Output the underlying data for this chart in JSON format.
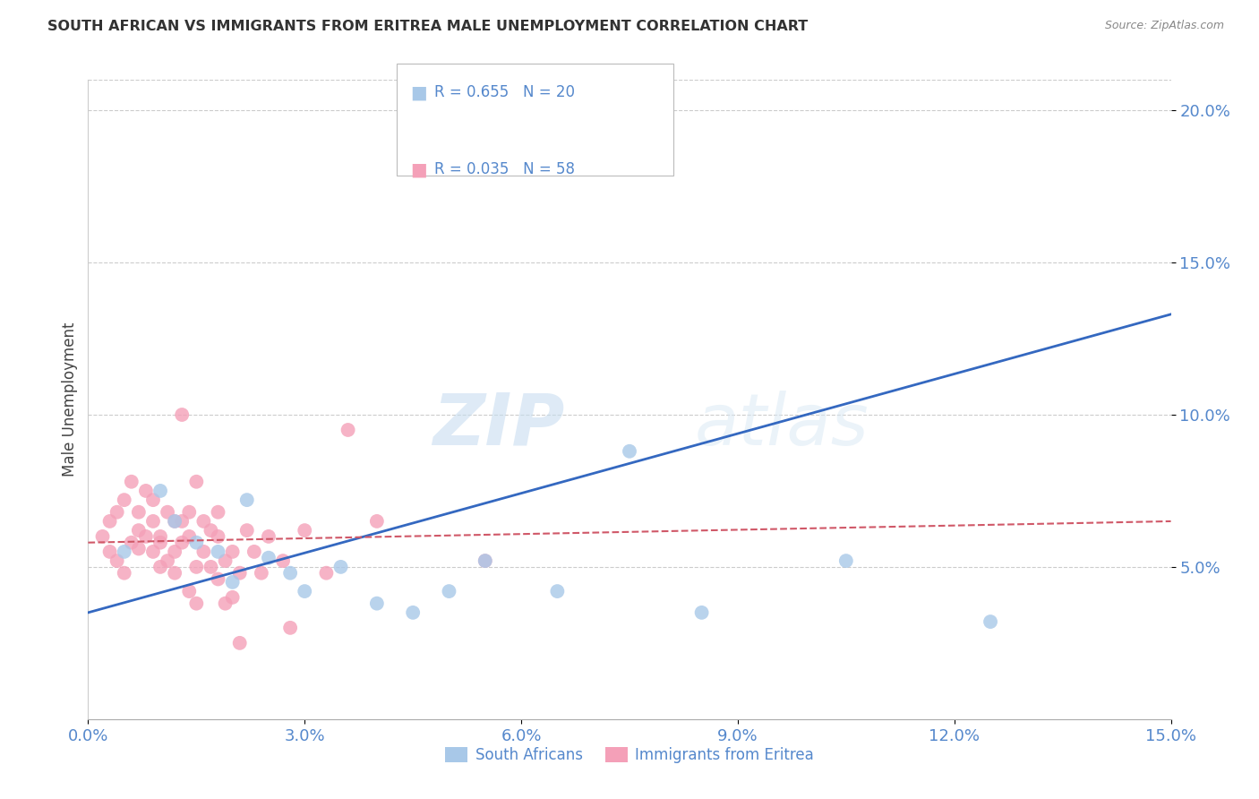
{
  "title": "SOUTH AFRICAN VS IMMIGRANTS FROM ERITREA MALE UNEMPLOYMENT CORRELATION CHART",
  "source": "Source: ZipAtlas.com",
  "ylabel": "Male Unemployment",
  "xlim": [
    0.0,
    0.15
  ],
  "ylim": [
    0.0,
    0.21
  ],
  "yticks": [
    0.05,
    0.1,
    0.15,
    0.2
  ],
  "xticks": [
    0.0,
    0.03,
    0.06,
    0.09,
    0.12,
    0.15
  ],
  "blue_R": 0.655,
  "blue_N": 20,
  "pink_R": 0.035,
  "pink_N": 58,
  "blue_color": "#a8c8e8",
  "pink_color": "#f4a0b8",
  "blue_line_color": "#3468c0",
  "pink_line_color": "#d05868",
  "grid_color": "#cccccc",
  "axis_label_color": "#5588cc",
  "title_color": "#333333",
  "watermark_zip": "ZIP",
  "watermark_atlas": "atlas",
  "blue_scatter_x": [
    0.005,
    0.01,
    0.012,
    0.015,
    0.018,
    0.02,
    0.022,
    0.025,
    0.028,
    0.03,
    0.035,
    0.04,
    0.045,
    0.05,
    0.055,
    0.065,
    0.075,
    0.085,
    0.105,
    0.125
  ],
  "blue_scatter_y": [
    0.055,
    0.075,
    0.065,
    0.058,
    0.055,
    0.045,
    0.072,
    0.053,
    0.048,
    0.042,
    0.05,
    0.038,
    0.035,
    0.042,
    0.052,
    0.042,
    0.088,
    0.035,
    0.052,
    0.032
  ],
  "pink_scatter_x": [
    0.002,
    0.003,
    0.003,
    0.004,
    0.004,
    0.005,
    0.005,
    0.006,
    0.006,
    0.007,
    0.007,
    0.007,
    0.008,
    0.008,
    0.009,
    0.009,
    0.009,
    0.01,
    0.01,
    0.01,
    0.011,
    0.011,
    0.012,
    0.012,
    0.012,
    0.013,
    0.013,
    0.013,
    0.014,
    0.014,
    0.014,
    0.015,
    0.015,
    0.015,
    0.016,
    0.016,
    0.017,
    0.017,
    0.018,
    0.018,
    0.018,
    0.019,
    0.019,
    0.02,
    0.02,
    0.021,
    0.021,
    0.022,
    0.023,
    0.024,
    0.025,
    0.027,
    0.028,
    0.03,
    0.033,
    0.036,
    0.04,
    0.055
  ],
  "pink_scatter_y": [
    0.06,
    0.055,
    0.065,
    0.052,
    0.068,
    0.048,
    0.072,
    0.058,
    0.078,
    0.062,
    0.068,
    0.056,
    0.06,
    0.075,
    0.055,
    0.065,
    0.072,
    0.06,
    0.05,
    0.058,
    0.052,
    0.068,
    0.055,
    0.048,
    0.065,
    0.058,
    0.065,
    0.1,
    0.042,
    0.06,
    0.068,
    0.05,
    0.078,
    0.038,
    0.065,
    0.055,
    0.062,
    0.05,
    0.046,
    0.06,
    0.068,
    0.038,
    0.052,
    0.04,
    0.055,
    0.048,
    0.025,
    0.062,
    0.055,
    0.048,
    0.06,
    0.052,
    0.03,
    0.062,
    0.048,
    0.095,
    0.065,
    0.052
  ],
  "blue_line_x0": 0.0,
  "blue_line_y0": 0.035,
  "blue_line_x1": 0.15,
  "blue_line_y1": 0.133,
  "pink_line_x0": 0.0,
  "pink_line_y0": 0.058,
  "pink_line_x1": 0.15,
  "pink_line_y1": 0.065
}
